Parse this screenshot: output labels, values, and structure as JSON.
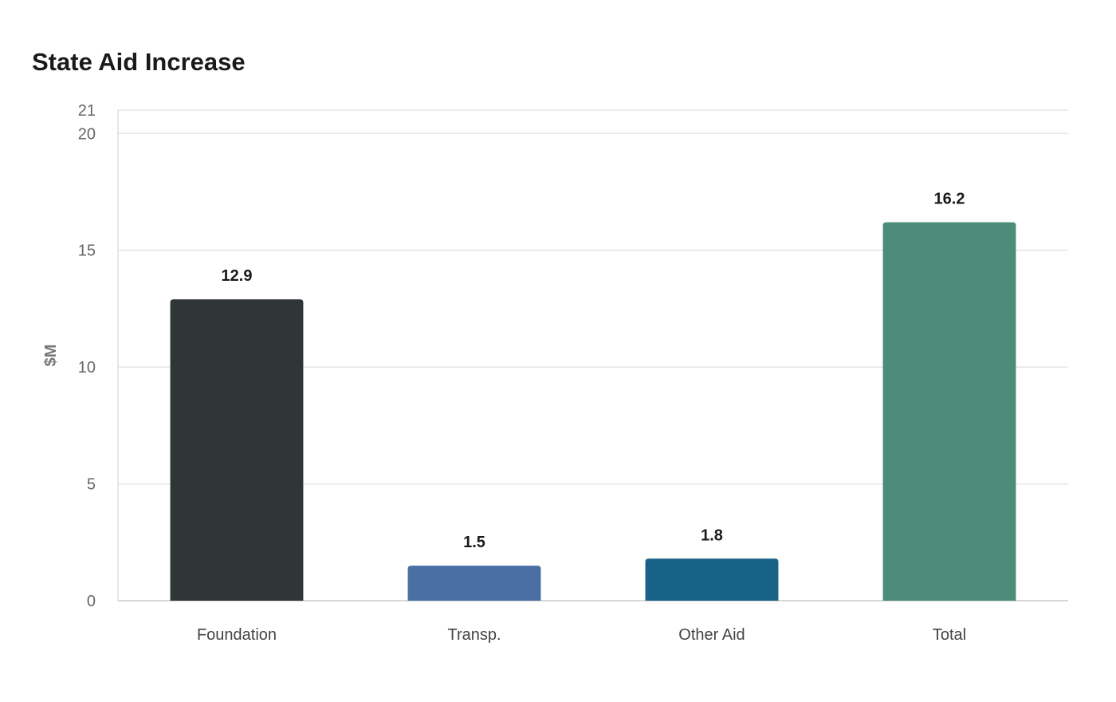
{
  "chart_data": {
    "type": "bar",
    "title": "State Aid Increase",
    "xlabel": "",
    "ylabel": "$M",
    "categories": [
      "Foundation",
      "Transp.",
      "Other Aid",
      "Total"
    ],
    "values": [
      12.9,
      1.5,
      1.8,
      16.2
    ],
    "data_labels": [
      "12.9",
      "1.5",
      "1.8",
      "16.2"
    ],
    "colors": [
      "#2e3638",
      "#4a6fa5",
      "#186288",
      "#4e8c7a"
    ],
    "ylim": [
      0,
      21
    ],
    "yticks": [
      0,
      5,
      10,
      15,
      20,
      21
    ],
    "grid": true,
    "legend": "none"
  }
}
